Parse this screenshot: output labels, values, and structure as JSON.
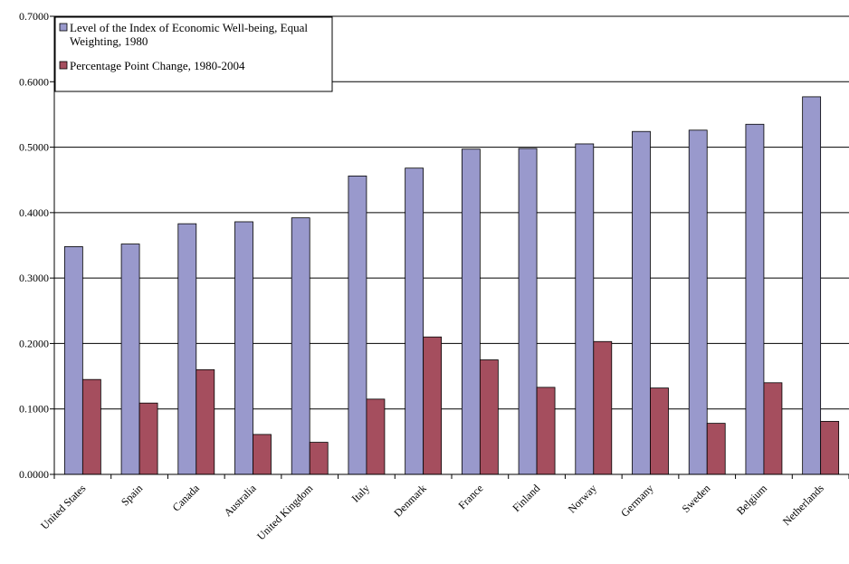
{
  "chart_data": {
    "type": "bar",
    "title": "",
    "xlabel": "",
    "ylabel": "",
    "ylim": [
      0,
      0.7
    ],
    "ytick_step": 0.1,
    "ytick_decimals": 4,
    "grid": true,
    "legend_position": "top-left",
    "categories": [
      "United States",
      "Spain",
      "Canada",
      "Australia",
      "United Kingdom",
      "Italy",
      "Denmark",
      "France",
      "Finland",
      "Norway",
      "Germany",
      "Sweden",
      "Belgium",
      "Netherlands"
    ],
    "series": [
      {
        "name": "Level of the Index of Economic Well-being, Equal Weighting, 1980",
        "legend_lines": [
          "Level of the Index of Economic Well-being, Equal",
          "Weighting, 1980"
        ],
        "color": "#9999cc",
        "values": [
          0.348,
          0.352,
          0.383,
          0.386,
          0.392,
          0.456,
          0.468,
          0.497,
          0.498,
          0.505,
          0.524,
          0.526,
          0.535,
          0.577
        ]
      },
      {
        "name": "Percentage Point Change, 1980-2004",
        "legend_lines": [
          "Percentage Point Change, 1980-2004"
        ],
        "color": "#a54e5e",
        "values": [
          0.145,
          0.109,
          0.16,
          0.061,
          0.049,
          0.115,
          0.21,
          0.175,
          0.133,
          0.203,
          0.132,
          0.078,
          0.14,
          0.081
        ]
      }
    ]
  }
}
